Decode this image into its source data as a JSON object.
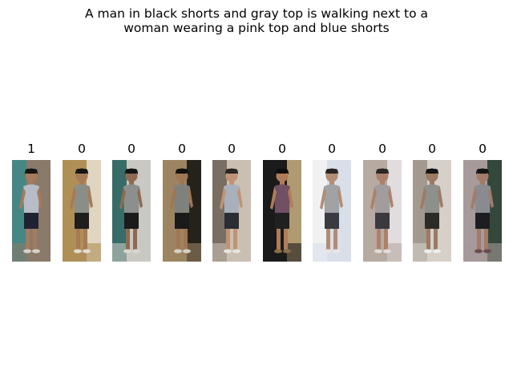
{
  "figure": {
    "title_line1": "A man in black shorts and gray top is walking next to a",
    "title_line2": "woman wearing a pink top and blue shorts"
  },
  "gallery": [
    {
      "label": "1",
      "colors": {
        "bg": "#8a7a6a",
        "bg2": "#3a8a8a",
        "top": "#b7bcc6",
        "bottom": "#1f2233",
        "skin": "#a67a5c",
        "hair": "#151515",
        "shoe": "#d7d0c8"
      }
    },
    {
      "label": "0",
      "colors": {
        "bg": "#b08f57",
        "bg2": "#e8e2d4",
        "top": "#8b8d87",
        "bottom": "#1e1e1e",
        "skin": "#a77b56",
        "hair": "#151515",
        "shoe": "#e0ddd2"
      }
    },
    {
      "label": "0",
      "colors": {
        "bg": "#c9c8c2",
        "bg2": "#1f5c58",
        "top": "#8d8f8e",
        "bottom": "#1b1b1b",
        "skin": "#8f6a50",
        "hair": "#141414",
        "shoe": "#d8d6d0"
      }
    },
    {
      "label": "0",
      "colors": {
        "bg": "#9d8461",
        "bg2": "#111111",
        "top": "#7f817c",
        "bottom": "#1a1a1a",
        "skin": "#9f7755",
        "hair": "#121212",
        "shoe": "#d5d1c8"
      }
    },
    {
      "label": "0",
      "colors": {
        "bg": "#c9c0b3",
        "bg2": "#6b5f52",
        "top": "#a8b1bb",
        "bottom": "#2a2d33",
        "skin": "#c19275",
        "hair": "#2a2623",
        "shoe": "#e6e4df"
      }
    },
    {
      "label": "0",
      "colors": {
        "bg": "#1a1a1a",
        "bg2": "#cbb281",
        "top": "#715064",
        "bottom": "#202020",
        "skin": "#b07d5a",
        "hair": "#0f0f0f",
        "shoe": "#8c6d49"
      }
    },
    {
      "label": "0",
      "colors": {
        "bg": "#d9dfe9",
        "bg2": "#f4f4f6",
        "top": "#a1a2a6",
        "bottom": "#3a3b41",
        "skin": "#b38c73",
        "hair": "#2a2523",
        "shoe": "#e8e6e4"
      }
    },
    {
      "label": "0",
      "colors": {
        "bg": "#b7aaa0",
        "bg2": "#e9e6ea",
        "top": "#a19c9d",
        "bottom": "#3a3940",
        "skin": "#ad8169",
        "hair": "#2a2624",
        "shoe": "#e0ddd9"
      }
    },
    {
      "label": "0",
      "colors": {
        "bg": "#d6d0c9",
        "bg2": "#9a8f85",
        "top": "#8e908b",
        "bottom": "#2b2b27",
        "skin": "#9c7a63",
        "hair": "#141414",
        "shoe": "#eeeeee"
      }
    },
    {
      "label": "0",
      "colors": {
        "bg": "#a69a9a",
        "bg2": "#1e3a2a",
        "top": "#8a8b90",
        "bottom": "#1d1d22",
        "skin": "#a37b66",
        "hair": "#151515",
        "shoe": "#6a4c52"
      }
    }
  ]
}
